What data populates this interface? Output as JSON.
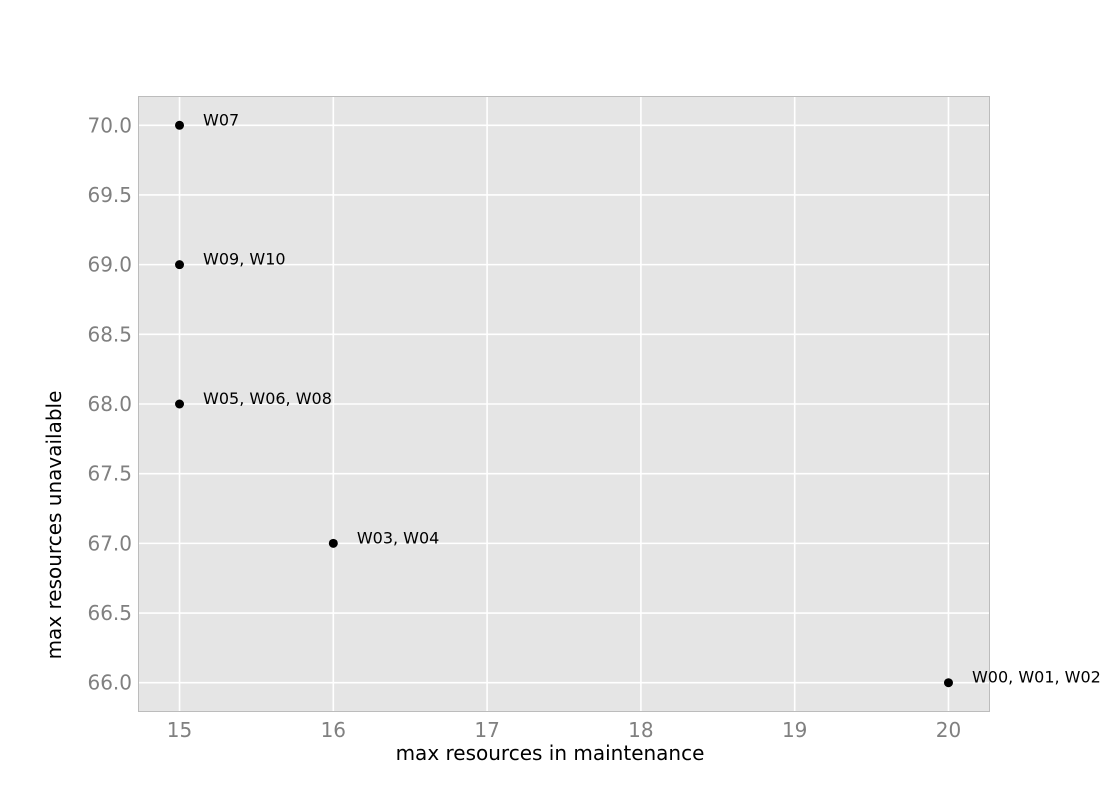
{
  "chart_data": {
    "type": "scatter",
    "title": "",
    "xlabel": "max resources in maintenance",
    "ylabel": "max resources unavailable",
    "xlim": [
      14.73,
      20.27
    ],
    "ylim": [
      65.79,
      70.21
    ],
    "xticks": [
      15,
      16,
      17,
      18,
      19,
      20
    ],
    "yticks": [
      66.0,
      66.5,
      67.0,
      67.5,
      68.0,
      68.5,
      69.0,
      69.5,
      70.0
    ],
    "tick_decimals": {
      "x": 0,
      "y": 1
    },
    "grid": true,
    "colors": {
      "plot_background": "#e5e5e5",
      "grid": "#ffffff",
      "frame": "#bcbcbc",
      "tick_labels": "#808080",
      "marker": "#000000"
    },
    "points": [
      {
        "x": 15,
        "y": 70,
        "label": "W07"
      },
      {
        "x": 15,
        "y": 69,
        "label": "W09, W10"
      },
      {
        "x": 15,
        "y": 68,
        "label": "W05, W06, W08"
      },
      {
        "x": 16,
        "y": 67,
        "label": "W03, W04"
      },
      {
        "x": 20,
        "y": 66,
        "label": "W00, W01, W02"
      }
    ]
  }
}
